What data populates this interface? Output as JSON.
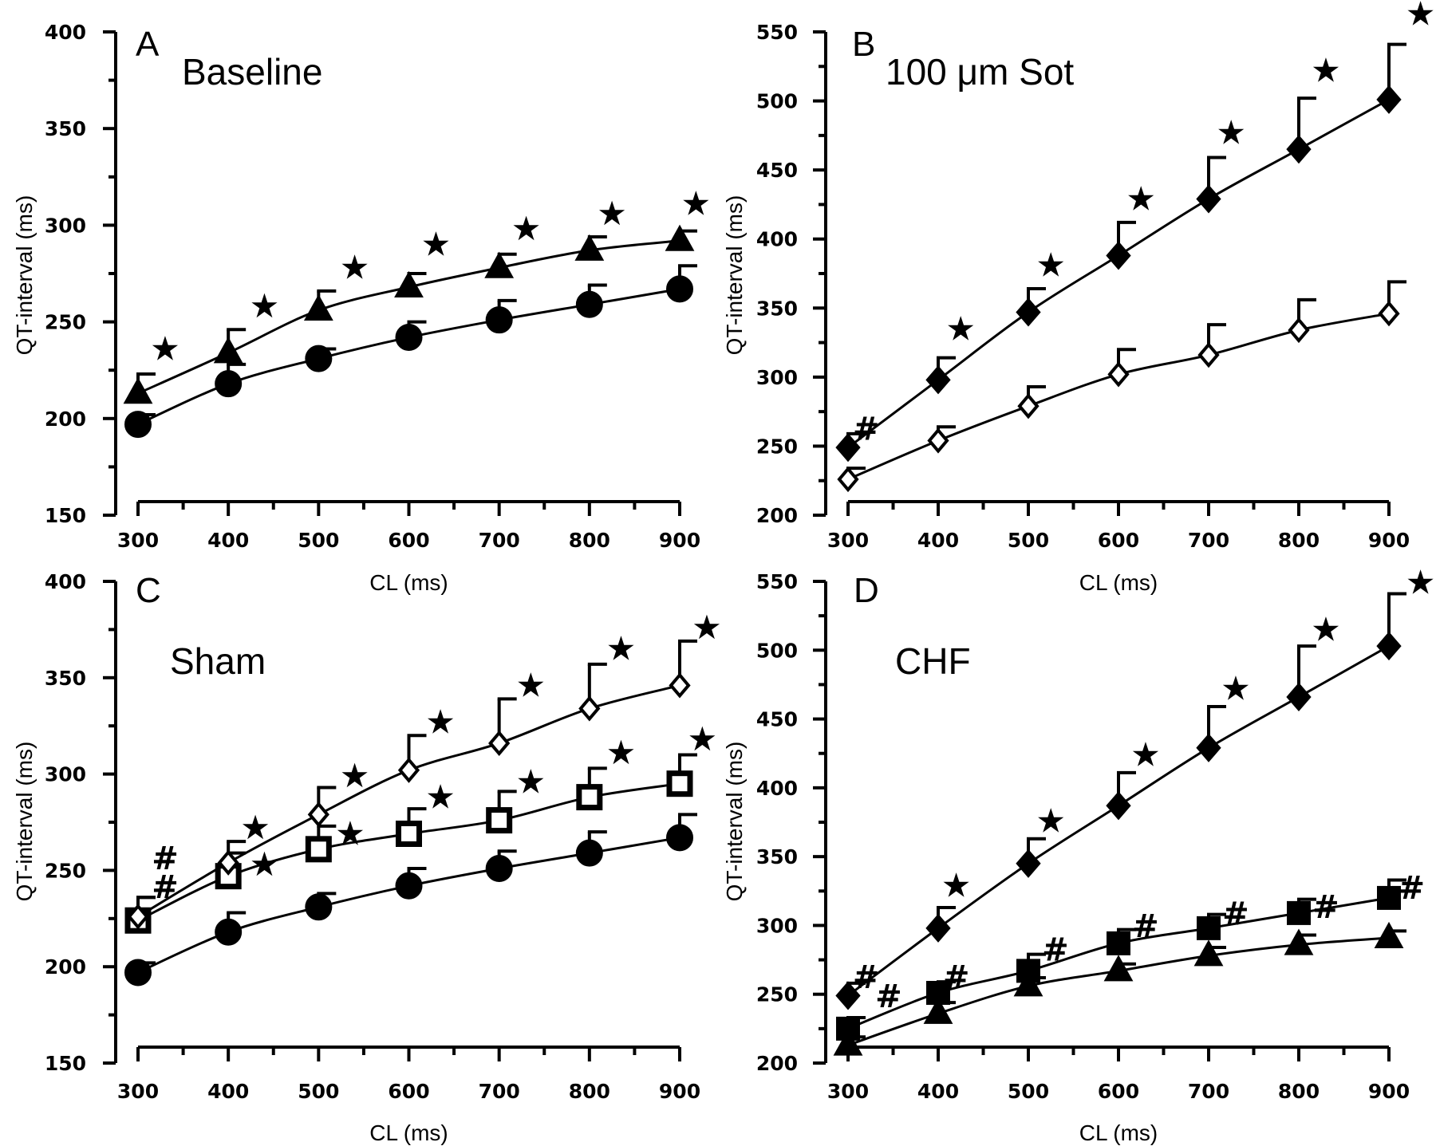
{
  "chart_data": [
    {
      "panel": "A",
      "title": "Baseline",
      "type": "line",
      "xlabel": "CL (ms)",
      "ylabel": "QT-interval (ms)",
      "xlim": [
        300,
        900
      ],
      "ylim": [
        150,
        400
      ],
      "xticks": [
        300,
        400,
        500,
        600,
        700,
        800,
        900
      ],
      "yticks": [
        150,
        200,
        250,
        300,
        350,
        400
      ],
      "x": [
        300,
        400,
        500,
        600,
        700,
        800,
        900
      ],
      "series": [
        {
          "marker": "circle",
          "values": [
            197,
            218,
            231,
            242,
            251,
            259,
            267
          ],
          "errors": [
            5,
            10,
            5,
            8,
            10,
            10,
            12
          ]
        },
        {
          "marker": "triangle",
          "values": [
            213,
            234,
            256,
            268,
            278,
            287,
            292
          ],
          "errors": [
            10,
            12,
            10,
            7,
            7,
            7,
            5
          ]
        }
      ],
      "annotations": [
        {
          "symbol": "★",
          "x": 330,
          "y": 236
        },
        {
          "symbol": "★",
          "x": 440,
          "y": 258
        },
        {
          "symbol": "★",
          "x": 540,
          "y": 278
        },
        {
          "symbol": "★",
          "x": 630,
          "y": 290
        },
        {
          "symbol": "★",
          "x": 730,
          "y": 298
        },
        {
          "symbol": "★",
          "x": 825,
          "y": 306
        },
        {
          "symbol": "★",
          "x": 918,
          "y": 311
        }
      ]
    },
    {
      "panel": "B",
      "title": "100 μm Sot",
      "type": "line",
      "xlabel": "CL (ms)",
      "ylabel": "QT-interval (ms)",
      "xlim": [
        300,
        900
      ],
      "ylim": [
        200,
        550
      ],
      "xticks": [
        300,
        400,
        500,
        600,
        700,
        800,
        900
      ],
      "yticks": [
        200,
        250,
        300,
        350,
        400,
        450,
        500,
        550
      ],
      "x": [
        300,
        400,
        500,
        600,
        700,
        800,
        900
      ],
      "series": [
        {
          "marker": "diamond-open",
          "values": [
            226,
            254,
            279,
            302,
            316,
            334,
            346
          ],
          "errors": [
            8,
            10,
            14,
            18,
            22,
            22,
            23
          ]
        },
        {
          "marker": "diamond-filled",
          "values": [
            249,
            298,
            347,
            388,
            429,
            465,
            501
          ],
          "errors": [
            10,
            16,
            17,
            24,
            30,
            37,
            40
          ]
        }
      ],
      "annotations": [
        {
          "symbol": "#",
          "x": 320,
          "y": 262
        },
        {
          "symbol": "★",
          "x": 425,
          "y": 335
        },
        {
          "symbol": "★",
          "x": 525,
          "y": 381
        },
        {
          "symbol": "★",
          "x": 625,
          "y": 429
        },
        {
          "symbol": "★",
          "x": 725,
          "y": 477
        },
        {
          "symbol": "★",
          "x": 830,
          "y": 522
        },
        {
          "symbol": "★",
          "x": 935,
          "y": 563
        }
      ]
    },
    {
      "panel": "C",
      "title": "Sham",
      "type": "line",
      "xlabel": "CL (ms)",
      "ylabel": "QT-interval (ms)",
      "xlim": [
        300,
        900
      ],
      "ylim": [
        150,
        400
      ],
      "xticks": [
        300,
        400,
        500,
        600,
        700,
        800,
        900
      ],
      "yticks": [
        150,
        200,
        250,
        300,
        350,
        400
      ],
      "x": [
        300,
        400,
        500,
        600,
        700,
        800,
        900
      ],
      "series": [
        {
          "marker": "circle",
          "values": [
            197,
            218,
            231,
            242,
            251,
            259,
            267
          ],
          "errors": [
            5,
            10,
            7,
            9,
            9,
            11,
            12
          ]
        },
        {
          "marker": "square-open",
          "values": [
            224,
            247,
            261,
            269,
            276,
            288,
            295
          ],
          "errors": [
            12,
            12,
            12,
            13,
            15,
            15,
            15
          ]
        },
        {
          "marker": "diamond-open",
          "values": [
            226,
            254,
            279,
            302,
            316,
            334,
            346
          ],
          "errors": [
            10,
            11,
            14,
            18,
            23,
            23,
            23
          ]
        }
      ],
      "annotations": [
        {
          "symbol": "#",
          "x": 330,
          "y": 256
        },
        {
          "symbol": "#",
          "x": 330,
          "y": 241
        },
        {
          "symbol": "★",
          "x": 430,
          "y": 272
        },
        {
          "symbol": "★",
          "x": 440,
          "y": 253
        },
        {
          "symbol": "★",
          "x": 540,
          "y": 299
        },
        {
          "symbol": "★",
          "x": 535,
          "y": 269
        },
        {
          "symbol": "★",
          "x": 635,
          "y": 327
        },
        {
          "symbol": "★",
          "x": 635,
          "y": 288
        },
        {
          "symbol": "★",
          "x": 735,
          "y": 346
        },
        {
          "symbol": "★",
          "x": 735,
          "y": 296
        },
        {
          "symbol": "★",
          "x": 835,
          "y": 365
        },
        {
          "symbol": "★",
          "x": 835,
          "y": 311
        },
        {
          "symbol": "★",
          "x": 930,
          "y": 376
        },
        {
          "symbol": "★",
          "x": 925,
          "y": 318
        }
      ]
    },
    {
      "panel": "D",
      "title": "CHF",
      "type": "line",
      "xlabel": "CL (ms)",
      "ylabel": "QT-interval (ms)",
      "xlim": [
        300,
        900
      ],
      "ylim": [
        200,
        550
      ],
      "xticks": [
        300,
        400,
        500,
        600,
        700,
        800,
        900
      ],
      "yticks": [
        200,
        250,
        300,
        350,
        400,
        450,
        500,
        550
      ],
      "x": [
        300,
        400,
        500,
        600,
        700,
        800,
        900
      ],
      "series": [
        {
          "marker": "triangle",
          "values": [
            213,
            236,
            256,
            267,
            278,
            286,
            291
          ],
          "errors": [
            6,
            8,
            6,
            5,
            6,
            7,
            5
          ]
        },
        {
          "marker": "square-filled",
          "values": [
            225,
            251,
            267,
            287,
            298,
            309,
            320
          ],
          "errors": [
            8,
            8,
            12,
            10,
            10,
            10,
            13
          ]
        },
        {
          "marker": "diamond-filled",
          "values": [
            249,
            298,
            345,
            387,
            429,
            466,
            503
          ],
          "errors": [
            9,
            15,
            18,
            24,
            30,
            37,
            38
          ]
        }
      ],
      "annotations": [
        {
          "symbol": "#",
          "x": 320,
          "y": 262
        },
        {
          "symbol": "#",
          "x": 345,
          "y": 248
        },
        {
          "symbol": "#",
          "x": 420,
          "y": 262
        },
        {
          "symbol": "#",
          "x": 530,
          "y": 282
        },
        {
          "symbol": "#",
          "x": 630,
          "y": 299
        },
        {
          "symbol": "#",
          "x": 730,
          "y": 308
        },
        {
          "symbol": "#",
          "x": 830,
          "y": 313
        },
        {
          "symbol": "#",
          "x": 925,
          "y": 327
        },
        {
          "symbol": "★",
          "x": 420,
          "y": 329
        },
        {
          "symbol": "★",
          "x": 525,
          "y": 376
        },
        {
          "symbol": "★",
          "x": 630,
          "y": 424
        },
        {
          "symbol": "★",
          "x": 730,
          "y": 472
        },
        {
          "symbol": "★",
          "x": 830,
          "y": 515
        },
        {
          "symbol": "★",
          "x": 935,
          "y": 549
        }
      ]
    }
  ]
}
